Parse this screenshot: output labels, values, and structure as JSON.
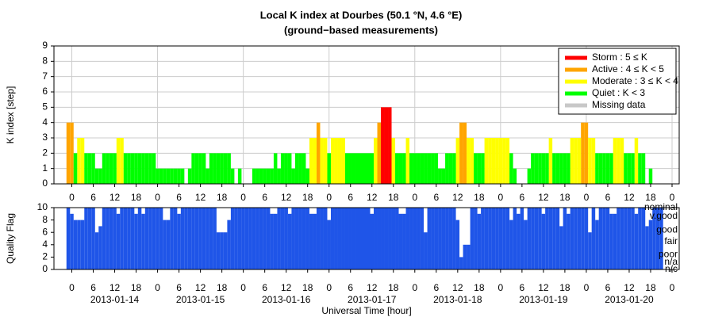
{
  "chart_data": [
    {
      "type": "bar",
      "title": "Local K index at Dourbes (50.1 °N, 4.6 °E)",
      "subtitle": "(ground−based measurements)",
      "y_label": "K index [step]",
      "xlim": [
        -5,
        170
      ],
      "xticks": [
        0,
        6,
        12,
        18,
        {
          "value": 24,
          "label": "0"
        },
        {
          "value": 30,
          "label": "6"
        },
        {
          "value": 36,
          "label": "12"
        },
        {
          "value": 42,
          "label": "18"
        },
        {
          "value": 48,
          "label": "0"
        },
        {
          "value": 54,
          "label": "6"
        },
        {
          "value": 60,
          "label": "12"
        },
        {
          "value": 66,
          "label": "18"
        },
        {
          "value": 72,
          "label": "0"
        },
        {
          "value": 78,
          "label": "6"
        },
        {
          "value": 84,
          "label": "12"
        },
        {
          "value": 90,
          "label": "18"
        },
        {
          "value": 96,
          "label": "0"
        },
        {
          "value": 102,
          "label": "6"
        },
        {
          "value": 108,
          "label": "12"
        },
        {
          "value": 114,
          "label": "18"
        },
        {
          "value": 120,
          "label": "0"
        },
        {
          "value": 126,
          "label": "6"
        },
        {
          "value": 132,
          "label": "12"
        },
        {
          "value": 138,
          "label": "18"
        },
        {
          "value": 144,
          "label": "0"
        },
        {
          "value": 150,
          "label": "6"
        },
        {
          "value": 156,
          "label": "12"
        },
        {
          "value": 162,
          "label": "18"
        },
        {
          "value": 168,
          "label": "0"
        }
      ],
      "ylim": [
        0,
        9
      ],
      "yticks": [
        0,
        1,
        2,
        3,
        4,
        5,
        6,
        7,
        8,
        9
      ],
      "grid": true,
      "legend": "upper right",
      "series": [
        {
          "name": "Storm : 5 ≤ K",
          "color": "#ff0000",
          "x": [
            87,
            88,
            89
          ],
          "values": [
            5,
            5,
            5
          ]
        },
        {
          "name": "Active : 4 ≤ K < 5",
          "color": "#ffa500",
          "x": [
            -1,
            0,
            69,
            86,
            109,
            110,
            143,
            144
          ],
          "values": [
            4,
            4,
            4,
            4,
            4,
            4,
            4,
            4
          ]
        },
        {
          "name": "Moderate : 3 ≤ K < 4",
          "color": "#ffff00",
          "x": [
            2,
            3,
            13,
            14,
            67,
            68,
            70,
            71,
            73,
            74,
            75,
            76,
            85,
            90,
            94,
            108,
            111,
            112,
            116,
            117,
            118,
            119,
            120,
            121,
            122,
            134,
            140,
            141,
            142,
            145,
            146,
            152,
            153,
            154,
            158
          ],
          "values": [
            3,
            3,
            3,
            3,
            3,
            3,
            3,
            3,
            3,
            3,
            3,
            3,
            3,
            3,
            3,
            3,
            3,
            3,
            3,
            3,
            3,
            3,
            3,
            3,
            3,
            3,
            3,
            3,
            3,
            3,
            3,
            3,
            3,
            3,
            3
          ]
        },
        {
          "name": "Quiet : K < 3",
          "color": "#00ff00",
          "x": [
            1,
            4,
            5,
            6,
            7,
            8,
            9,
            10,
            11,
            12,
            15,
            16,
            17,
            18,
            19,
            20,
            21,
            22,
            23,
            24,
            25,
            26,
            27,
            28,
            29,
            30,
            31,
            33,
            34,
            35,
            36,
            37,
            38,
            39,
            40,
            41,
            42,
            43,
            44,
            45,
            47,
            51,
            52,
            53,
            54,
            55,
            56,
            57,
            58,
            59,
            60,
            61,
            62,
            63,
            64,
            65,
            66,
            72,
            77,
            78,
            79,
            80,
            81,
            82,
            83,
            84,
            91,
            92,
            93,
            95,
            96,
            97,
            98,
            99,
            100,
            101,
            102,
            103,
            104,
            105,
            106,
            107,
            113,
            114,
            115,
            123,
            124,
            128,
            129,
            130,
            131,
            132,
            133,
            135,
            136,
            137,
            138,
            139,
            147,
            148,
            149,
            150,
            151,
            155,
            156,
            157,
            159,
            160,
            162
          ],
          "values": [
            2,
            2,
            2,
            2,
            1,
            1,
            2,
            2,
            2,
            2,
            2,
            2,
            2,
            2,
            2,
            2,
            2,
            2,
            2,
            1,
            1,
            1,
            1,
            1,
            1,
            1,
            1,
            1,
            2,
            2,
            2,
            2,
            1,
            2,
            2,
            2,
            2,
            2,
            2,
            1,
            1,
            1,
            1,
            1,
            1,
            1,
            1,
            2,
            1,
            2,
            2,
            2,
            1,
            2,
            2,
            2,
            1,
            2,
            2,
            2,
            2,
            2,
            2,
            2,
            2,
            2,
            2,
            2,
            2,
            2,
            2,
            2,
            2,
            2,
            2,
            2,
            2,
            1,
            1,
            2,
            2,
            2,
            2,
            2,
            2,
            2,
            1,
            1,
            2,
            2,
            2,
            2,
            2,
            2,
            2,
            2,
            2,
            2,
            2,
            2,
            2,
            2,
            2,
            2,
            2,
            2,
            2,
            2,
            1
          ]
        },
        {
          "name": "Missing data",
          "color": "#c8c8c8",
          "x": [],
          "values": []
        }
      ]
    },
    {
      "type": "bar",
      "y_label": "Quality Flag",
      "x_label": "Universal Time [hour]",
      "xlim": [
        -5,
        170
      ],
      "xticks": [
        0,
        6,
        12,
        18,
        {
          "value": 24,
          "label": "0"
        },
        {
          "value": 30,
          "label": "6"
        },
        {
          "value": 36,
          "label": "12"
        },
        {
          "value": 42,
          "label": "18"
        },
        {
          "value": 48,
          "label": "0"
        },
        {
          "value": 54,
          "label": "6"
        },
        {
          "value": 60,
          "label": "12"
        },
        {
          "value": 66,
          "label": "18"
        },
        {
          "value": 72,
          "label": "0"
        },
        {
          "value": 78,
          "label": "6"
        },
        {
          "value": 84,
          "label": "12"
        },
        {
          "value": 90,
          "label": "18"
        },
        {
          "value": 96,
          "label": "0"
        },
        {
          "value": 102,
          "label": "6"
        },
        {
          "value": 108,
          "label": "12"
        },
        {
          "value": 114,
          "label": "18"
        },
        {
          "value": 120,
          "label": "0"
        },
        {
          "value": 126,
          "label": "6"
        },
        {
          "value": 132,
          "label": "12"
        },
        {
          "value": 138,
          "label": "18"
        },
        {
          "value": 144,
          "label": "0"
        },
        {
          "value": 150,
          "label": "6"
        },
        {
          "value": 156,
          "label": "12"
        },
        {
          "value": 162,
          "label": "18"
        },
        {
          "value": 168,
          "label": "0"
        }
      ],
      "day_labels": [
        {
          "value": 12,
          "label": "2013-01-14"
        },
        {
          "value": 36,
          "label": "2013-01-15"
        },
        {
          "value": 60,
          "label": "2013-01-16"
        },
        {
          "value": 84,
          "label": "2013-01-17"
        },
        {
          "value": 108,
          "label": "2013-01-18"
        },
        {
          "value": 132,
          "label": "2013-01-19"
        },
        {
          "value": 156,
          "label": "2013-01-20"
        }
      ],
      "ylim": [
        0,
        10
      ],
      "yticks": [
        0,
        2,
        4,
        6,
        8,
        10
      ],
      "levels": [
        {
          "value": 10,
          "label": "nominal"
        },
        {
          "value": 8.6,
          "label": "v.good"
        },
        {
          "value": 6.4,
          "label": "good"
        },
        {
          "value": 4.5,
          "label": "fair"
        },
        {
          "value": 2.4,
          "label": "poor"
        },
        {
          "value": 1.2,
          "label": "n/a"
        },
        {
          "value": 0,
          "label": "n/c"
        }
      ],
      "series": [
        {
          "color": "#1f55e8",
          "x": [
            -1,
            0,
            1,
            2,
            3,
            4,
            5,
            6,
            7,
            8,
            9,
            10,
            11,
            12,
            13,
            14,
            15,
            16,
            17,
            18,
            19,
            20,
            21,
            22,
            23,
            24,
            25,
            26,
            27,
            28,
            29,
            30,
            31,
            32,
            33,
            34,
            35,
            36,
            37,
            38,
            39,
            40,
            41,
            42,
            43,
            44,
            45,
            46,
            47,
            48,
            49,
            50,
            51,
            52,
            53,
            54,
            55,
            56,
            57,
            58,
            59,
            60,
            61,
            62,
            63,
            64,
            65,
            66,
            67,
            68,
            69,
            70,
            71,
            72,
            73,
            74,
            75,
            76,
            77,
            78,
            79,
            80,
            81,
            82,
            83,
            84,
            85,
            86,
            87,
            88,
            89,
            90,
            91,
            92,
            93,
            94,
            95,
            96,
            97,
            98,
            99,
            100,
            101,
            102,
            103,
            104,
            105,
            106,
            107,
            108,
            109,
            110,
            111,
            112,
            113,
            114,
            115,
            116,
            117,
            118,
            119,
            120,
            121,
            122,
            123,
            124,
            125,
            126,
            127,
            128,
            129,
            130,
            131,
            132,
            133,
            134,
            135,
            136,
            137,
            138,
            139,
            140,
            141,
            142,
            143,
            144,
            145,
            146,
            147,
            148,
            149,
            150,
            151,
            152,
            153,
            154,
            155,
            156,
            157,
            158,
            159,
            160,
            161,
            162,
            163,
            164,
            165
          ],
          "values": [
            10,
            9,
            8,
            8,
            8,
            10,
            10,
            10,
            6,
            7,
            10,
            10,
            10,
            10,
            9,
            10,
            10,
            10,
            10,
            9,
            10,
            9,
            10,
            10,
            10,
            10,
            10,
            8,
            8,
            10,
            10,
            9,
            10,
            10,
            10,
            10,
            10,
            10,
            10,
            10,
            10,
            10,
            6,
            6,
            6,
            8,
            10,
            10,
            10,
            10,
            10,
            10,
            10,
            10,
            10,
            10,
            10,
            9,
            9,
            10,
            10,
            10,
            9,
            10,
            10,
            10,
            10,
            10,
            9,
            9,
            10,
            10,
            10,
            8,
            10,
            10,
            10,
            10,
            10,
            10,
            10,
            10,
            10,
            10,
            10,
            9,
            10,
            10,
            10,
            10,
            10,
            10,
            10,
            9,
            9,
            10,
            10,
            10,
            10,
            10,
            6,
            10,
            10,
            10,
            10,
            10,
            10,
            10,
            10,
            8,
            2,
            4,
            4,
            10,
            10,
            9,
            10,
            10,
            10,
            10,
            10,
            10,
            10,
            10,
            8,
            10,
            9,
            10,
            8,
            10,
            10,
            10,
            10,
            9,
            10,
            10,
            10,
            10,
            7,
            10,
            9,
            10,
            10,
            10,
            10,
            10,
            6,
            10,
            8,
            10,
            10,
            10,
            9,
            9,
            10,
            10,
            10,
            10,
            10,
            9,
            10,
            10,
            7,
            8,
            10,
            10,
            10
          ]
        }
      ]
    }
  ]
}
